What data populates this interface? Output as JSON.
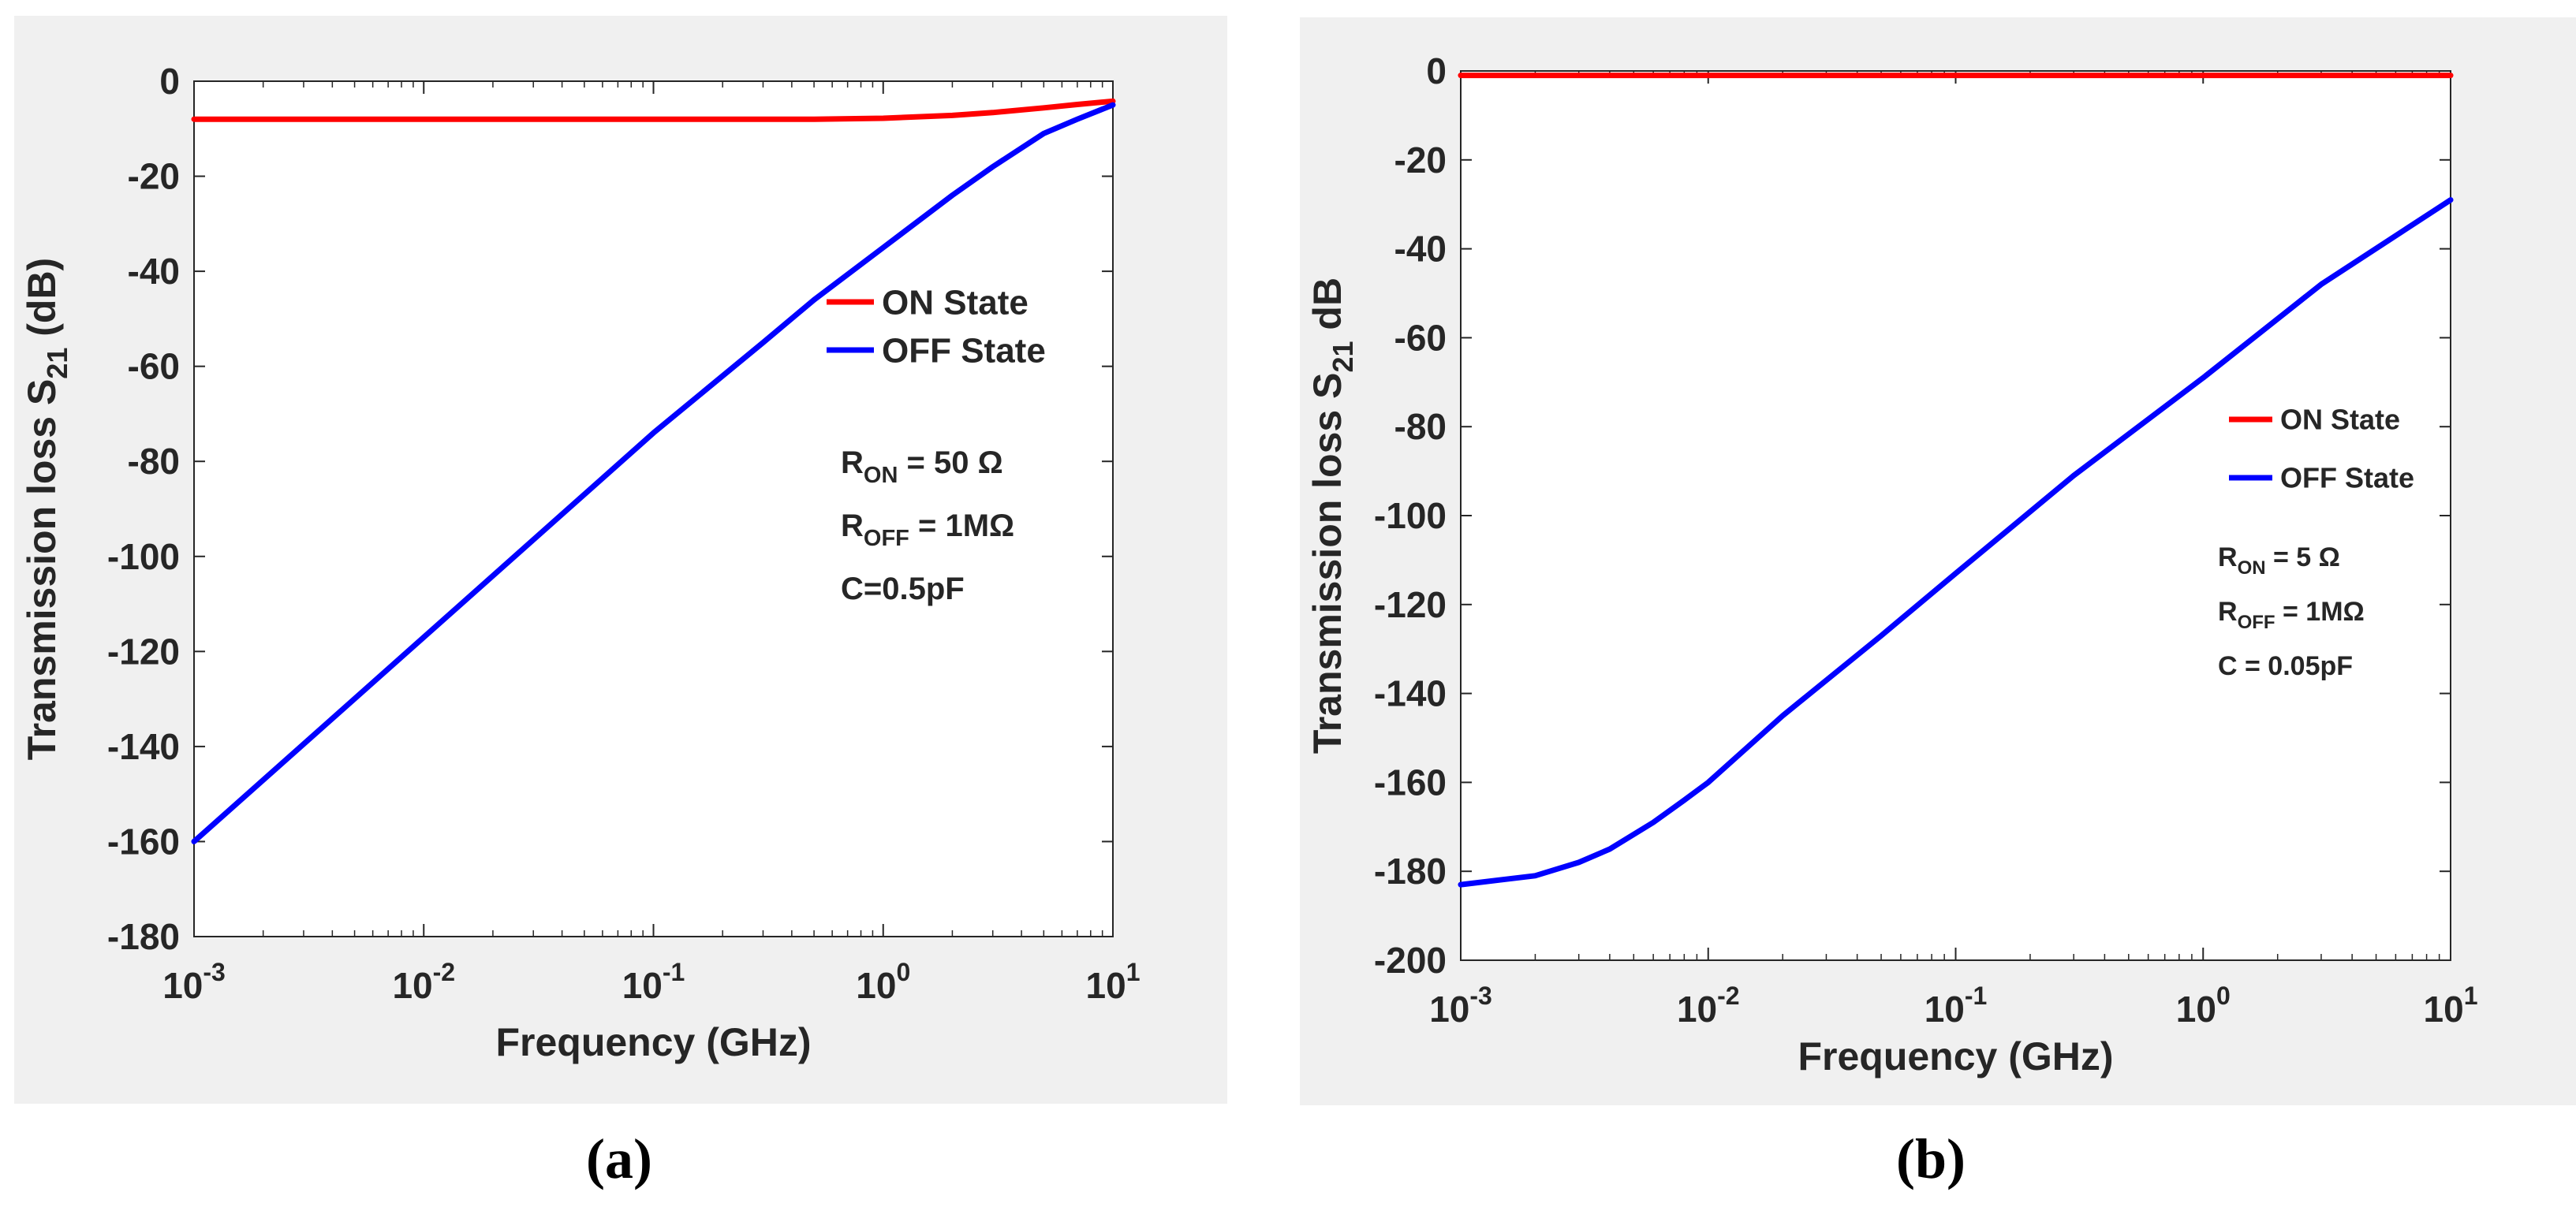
{
  "chart_data": [
    {
      "type": "line",
      "xscale": "log",
      "xlim": [
        0.001,
        10
      ],
      "ylim": [
        -180,
        0
      ],
      "xticks": [
        0.001,
        0.01,
        0.1,
        1,
        10
      ],
      "xtick_labels": [
        {
          "base": "10",
          "exp": "-3"
        },
        {
          "base": "10",
          "exp": "-2"
        },
        {
          "base": "10",
          "exp": "-1"
        },
        {
          "base": "10",
          "exp": "0"
        },
        {
          "base": "10",
          "exp": "1"
        }
      ],
      "yticks": [
        0,
        -20,
        -40,
        -60,
        -80,
        -100,
        -120,
        -140,
        -160,
        -180
      ],
      "ytick_labels": [
        "0",
        "-20",
        "-40",
        "-60",
        "-80",
        "-100",
        "-120",
        "-140",
        "-160",
        "-180"
      ],
      "xlabel": "Frequency (GHz)",
      "ylabel": {
        "main": "Transmission loss S",
        "sub": "21",
        "tail": " (dB)"
      },
      "legend": {
        "position": "upper-right",
        "entries": [
          "ON State",
          "OFF State"
        ]
      },
      "annotations": [
        {
          "main": "R",
          "sub": "ON",
          "tail": " = 50 Ω"
        },
        {
          "main": "R",
          "sub": "OFF",
          "tail": " = 1MΩ"
        },
        {
          "main": "C=0.5pF",
          "sub": "",
          "tail": ""
        }
      ],
      "caption": "(a)",
      "series": [
        {
          "name": "ON State",
          "color": "#ff0000",
          "x": [
            0.001,
            0.01,
            0.1,
            0.5,
            1,
            2,
            3,
            5,
            7,
            10
          ],
          "y": [
            -8,
            -8,
            -8,
            -8,
            -7.8,
            -7.2,
            -6.6,
            -5.6,
            -4.9,
            -4.2
          ]
        },
        {
          "name": "OFF State",
          "color": "#0000ff",
          "x": [
            0.001,
            0.01,
            0.1,
            0.3,
            0.5,
            1,
            2,
            3,
            5,
            7,
            10
          ],
          "y": [
            -160,
            -117,
            -74,
            -55,
            -46,
            -35,
            -24,
            -18,
            -11,
            -8,
            -5
          ]
        }
      ]
    },
    {
      "type": "line",
      "xscale": "log",
      "xlim": [
        0.001,
        10
      ],
      "ylim": [
        -200,
        0
      ],
      "xticks": [
        0.001,
        0.01,
        0.1,
        1,
        10
      ],
      "xtick_labels": [
        {
          "base": "10",
          "exp": "-3"
        },
        {
          "base": "10",
          "exp": "-2"
        },
        {
          "base": "10",
          "exp": "-1"
        },
        {
          "base": "10",
          "exp": "0"
        },
        {
          "base": "10",
          "exp": "1"
        }
      ],
      "yticks": [
        0,
        -20,
        -40,
        -60,
        -80,
        -100,
        -120,
        -140,
        -160,
        -180,
        -200
      ],
      "ytick_labels": [
        "0",
        "-20",
        "-40",
        "-60",
        "-80",
        "-100",
        "-120",
        "-140",
        "-160",
        "-180",
        "-200"
      ],
      "xlabel": "Frequency (GHz)",
      "ylabel": {
        "main": "Transmission loss S",
        "sub": "21",
        "tail": " dB"
      },
      "legend": {
        "position": "right",
        "entries": [
          "ON State",
          "OFF State"
        ]
      },
      "annotations": [
        {
          "main": "R",
          "sub": "ON",
          "tail": " = 5 Ω"
        },
        {
          "main": "R",
          "sub": "OFF",
          "tail": " = 1MΩ"
        },
        {
          "main": "C = 0.05pF",
          "sub": "",
          "tail": ""
        }
      ],
      "caption": "(b)",
      "series": [
        {
          "name": "ON State",
          "color": "#ff0000",
          "x": [
            0.001,
            0.01,
            0.1,
            1,
            10
          ],
          "y": [
            -1,
            -1,
            -1,
            -1,
            -1
          ]
        },
        {
          "name": "OFF State",
          "color": "#0000ff",
          "x": [
            0.001,
            0.002,
            0.003,
            0.004,
            0.006,
            0.008,
            0.01,
            0.02,
            0.05,
            0.1,
            0.3,
            1,
            3,
            10
          ],
          "y": [
            -183,
            -181,
            -178,
            -175,
            -169,
            -164,
            -160,
            -145,
            -127,
            -113,
            -91,
            -69,
            -48,
            -29
          ]
        }
      ]
    }
  ]
}
